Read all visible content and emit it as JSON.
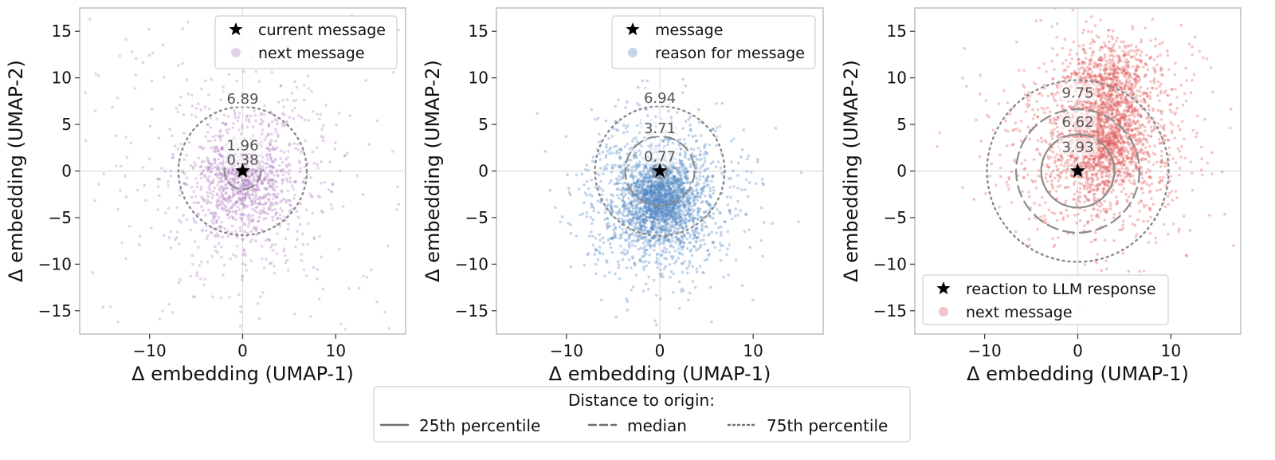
{
  "colors": {
    "purple": "#b27fc4",
    "blue": "#4f86c4",
    "red": "#e05a5a",
    "ring": "#8a8a8a",
    "frame": "#bfbfbf",
    "grid": "#dcdcdc"
  },
  "chart_data": [
    {
      "type": "scatter",
      "xlabel": "Δ embedding (UMAP-1)",
      "ylabel": "Δ embedding (UMAP-2)",
      "xlim": [
        -17.5,
        17.5
      ],
      "ylim": [
        -17.5,
        17.5
      ],
      "xticks": [
        -10,
        0,
        10
      ],
      "yticks": [
        -15,
        -10,
        -5,
        0,
        5,
        10,
        15
      ],
      "xtick_labels": [
        "−10",
        "0",
        "10"
      ],
      "ytick_labels": [
        "−15",
        "−10",
        "−5",
        "0",
        "5",
        "10",
        "15"
      ],
      "origin_marker": {
        "x": 0,
        "y": 0,
        "shape": "star"
      },
      "series": [
        {
          "name": "current message",
          "marker": "star"
        },
        {
          "name": "next message",
          "color": "#b27fc4",
          "center": [
            0,
            -1
          ],
          "spread": [
            4.5,
            5.5
          ],
          "n": 1400
        }
      ],
      "legend": "upper right",
      "rings": [
        {
          "r": 0.38,
          "label": "0.38",
          "style": "solid"
        },
        {
          "r": 1.96,
          "label": "1.96",
          "style": "dashed"
        },
        {
          "r": 6.89,
          "label": "6.89",
          "style": "dotted"
        }
      ]
    },
    {
      "type": "scatter",
      "xlabel": "Δ embedding (UMAP-1)",
      "ylabel": "Δ embedding (UMAP-2)",
      "xlim": [
        -17.5,
        17.5
      ],
      "ylim": [
        -17.5,
        17.5
      ],
      "xticks": [
        -10,
        0,
        10
      ],
      "yticks": [
        -15,
        -10,
        -5,
        0,
        5,
        10,
        15
      ],
      "xtick_labels": [
        "−10",
        "0",
        "10"
      ],
      "ytick_labels": [
        "−15",
        "−10",
        "−5",
        "0",
        "5",
        "10",
        "15"
      ],
      "origin_marker": {
        "x": 0,
        "y": 0,
        "shape": "star"
      },
      "series": [
        {
          "name": "message",
          "marker": "star"
        },
        {
          "name": "reason for message",
          "color": "#4f86c4",
          "center": [
            0,
            -3
          ],
          "spread": [
            4.0,
            4.5
          ],
          "n": 2600
        }
      ],
      "legend": "upper right",
      "rings": [
        {
          "r": 0.77,
          "label": "0.77",
          "style": "solid"
        },
        {
          "r": 3.71,
          "label": "3.71",
          "style": "dashed"
        },
        {
          "r": 6.94,
          "label": "6.94",
          "style": "dotted"
        }
      ]
    },
    {
      "type": "scatter",
      "xlabel": "Δ embedding (UMAP-1)",
      "ylabel": "Δ embedding (UMAP-2)",
      "xlim": [
        -17.5,
        17.5
      ],
      "ylim": [
        -17.5,
        17.5
      ],
      "xticks": [
        -10,
        0,
        10
      ],
      "yticks": [
        -15,
        -10,
        -5,
        0,
        5,
        10,
        15
      ],
      "xtick_labels": [
        "−10",
        "0",
        "10"
      ],
      "ytick_labels": [
        "−15",
        "−10",
        "−5",
        "0",
        "5",
        "10",
        "15"
      ],
      "origin_marker": {
        "x": 0,
        "y": 0,
        "shape": "star"
      },
      "series": [
        {
          "name": "reaction to LLM response",
          "marker": "star"
        },
        {
          "name": "next message",
          "color": "#e05a5a",
          "center": [
            2.5,
            3
          ],
          "spread": [
            5.0,
            5.5
          ],
          "n": 2800
        }
      ],
      "legend": "lower left",
      "rings": [
        {
          "r": 3.93,
          "label": "3.93",
          "style": "solid"
        },
        {
          "r": 6.62,
          "label": "6.62",
          "style": "dashed"
        },
        {
          "r": 9.75,
          "label": "9.75",
          "style": "dotted"
        }
      ]
    }
  ],
  "figure_legend": {
    "title": "Distance to origin:",
    "items": [
      {
        "label": "25th percentile",
        "style": "solid"
      },
      {
        "label": "median",
        "style": "dashed"
      },
      {
        "label": "75th percentile",
        "style": "dotted"
      }
    ]
  }
}
